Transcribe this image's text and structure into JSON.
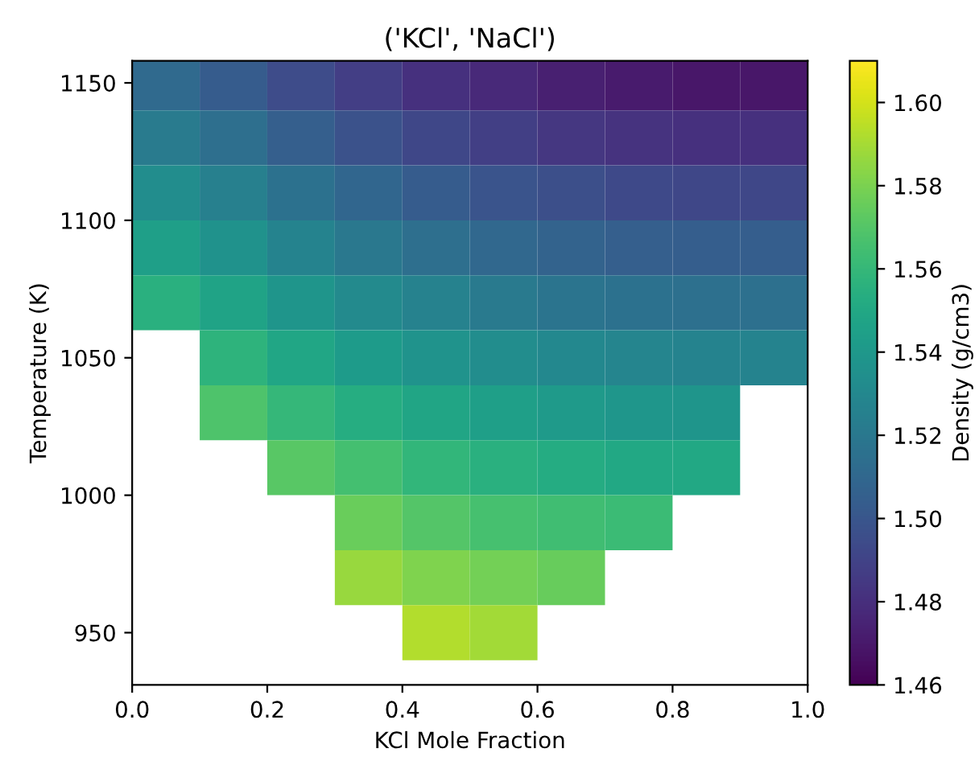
{
  "chart_data": {
    "type": "heatmap",
    "title": "('KCl', 'NaCl')",
    "xlabel": "KCl Mole Fraction",
    "ylabel": "Temperature (K)",
    "clabel": "Density (g/cm3)",
    "x": [
      0.05,
      0.15,
      0.25,
      0.35,
      0.45,
      0.55,
      0.65,
      0.75,
      0.85,
      0.95
    ],
    "y": [
      1150,
      1130,
      1110,
      1090,
      1070,
      1050,
      1030,
      1010,
      990,
      970,
      950
    ],
    "cells": [
      [
        1.511,
        1.503,
        1.494,
        1.487,
        1.481,
        1.477,
        1.473,
        1.471,
        1.469,
        1.469
      ],
      [
        1.522,
        1.514,
        1.505,
        1.498,
        1.492,
        1.488,
        1.484,
        1.482,
        1.481,
        1.481
      ],
      [
        1.533,
        1.525,
        1.516,
        1.509,
        1.503,
        1.499,
        1.496,
        1.493,
        1.492,
        1.492
      ],
      [
        1.544,
        1.536,
        1.527,
        1.52,
        1.514,
        1.51,
        1.507,
        1.505,
        1.504,
        1.504
      ],
      [
        1.555,
        1.547,
        1.538,
        1.531,
        1.526,
        1.521,
        1.518,
        1.516,
        1.515,
        1.515
      ],
      [
        null,
        1.557,
        1.549,
        1.542,
        1.537,
        1.533,
        1.53,
        1.528,
        1.527,
        1.527
      ],
      [
        null,
        1.568,
        1.56,
        1.553,
        1.548,
        1.544,
        1.541,
        1.539,
        1.538,
        null
      ],
      [
        null,
        null,
        1.571,
        1.565,
        1.559,
        1.555,
        1.552,
        1.55,
        1.55,
        null
      ],
      [
        null,
        null,
        null,
        1.576,
        1.57,
        1.566,
        1.564,
        1.562,
        null,
        null
      ],
      [
        null,
        null,
        null,
        1.587,
        1.581,
        1.578,
        1.575,
        null,
        null,
        null
      ],
      [
        null,
        null,
        null,
        null,
        1.593,
        1.589,
        null,
        null,
        null,
        null
      ]
    ],
    "xlim": [
      0,
      1
    ],
    "ylim": [
      931,
      1158
    ],
    "xticks": [
      {
        "value": 0,
        "label": "0.0"
      },
      {
        "value": 0.2,
        "label": "0.2"
      },
      {
        "value": 0.4,
        "label": "0.4"
      },
      {
        "value": 0.6,
        "label": "0.6"
      },
      {
        "value": 0.8,
        "label": "0.8"
      },
      {
        "value": 1,
        "label": "1.0"
      }
    ],
    "yticks": [
      950,
      1000,
      1050,
      1100,
      1150
    ],
    "clim": [
      1.46,
      1.61
    ],
    "cticks": [
      1.46,
      1.48,
      {
        "value": 1.5,
        "label": "1.50"
      },
      1.52,
      1.54,
      1.56,
      1.58,
      {
        "value": 1.6,
        "label": "1.60"
      }
    ]
  }
}
